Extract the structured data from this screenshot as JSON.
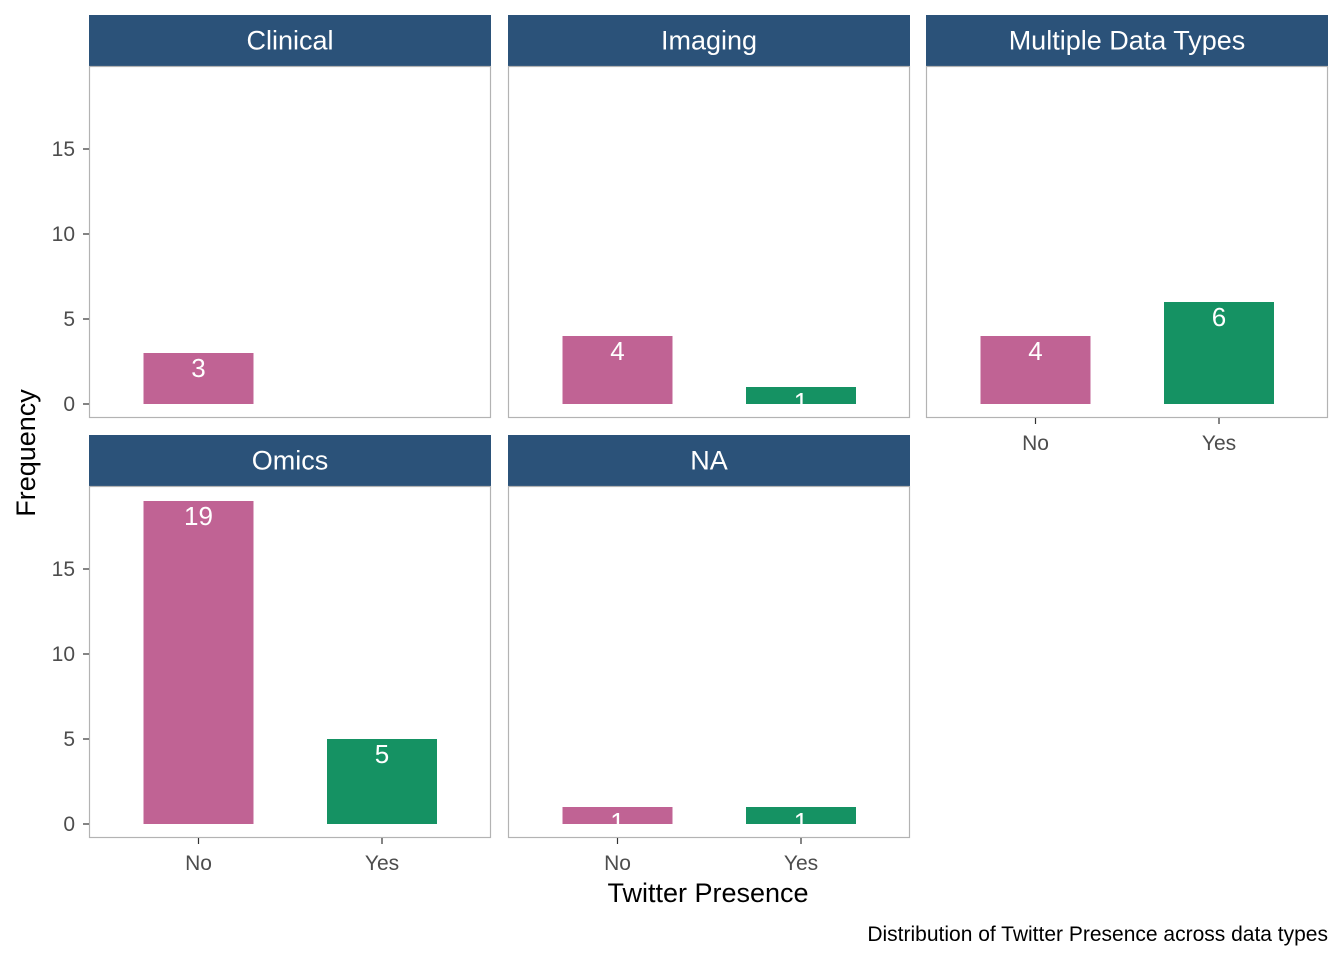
{
  "chart_data": {
    "type": "bar",
    "caption": "Distribution of Twitter Presence across data types",
    "xlabel": "Twitter Presence",
    "ylabel": "Frequency",
    "categories": [
      "No",
      "Yes"
    ],
    "ylim": [
      0,
      19
    ],
    "yticks": [
      0,
      5,
      10,
      15
    ],
    "grid": false,
    "colors": {
      "No": "#C06394",
      "Yes": "#159263",
      "strip": "#2B5279",
      "panel_border": "#B3B3B3"
    },
    "panels": [
      {
        "name": "Clinical",
        "values": [
          3,
          null
        ]
      },
      {
        "name": "Imaging",
        "values": [
          4,
          1
        ]
      },
      {
        "name": "Multiple Data Types",
        "values": [
          4,
          6
        ]
      },
      {
        "name": "Omics",
        "values": [
          19,
          5
        ]
      },
      {
        "name": "NA",
        "values": [
          1,
          1
        ]
      }
    ]
  }
}
